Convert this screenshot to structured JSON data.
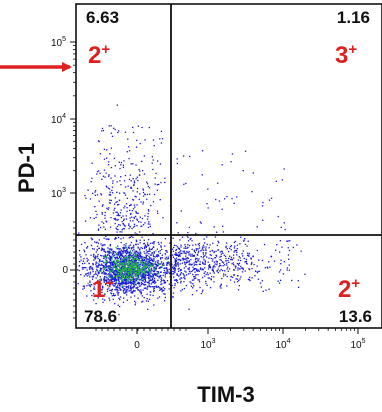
{
  "chart_data": {
    "type": "scatter",
    "xlabel": "TIM-3",
    "ylabel": "PD-1",
    "x_ticks": [
      {
        "base": "0",
        "exp": ""
      },
      {
        "base": "10",
        "exp": "3"
      },
      {
        "base": "10",
        "exp": "4"
      },
      {
        "base": "10",
        "exp": "5"
      }
    ],
    "y_ticks": [
      {
        "base": "0",
        "exp": ""
      },
      {
        "base": "10",
        "exp": "3"
      },
      {
        "base": "10",
        "exp": "4"
      },
      {
        "base": "10",
        "exp": "5"
      }
    ],
    "quadrants": {
      "top_left": {
        "percent": "6.63",
        "label": "2",
        "sup": "+"
      },
      "top_right": {
        "percent": "1.16",
        "label": "3",
        "sup": "+"
      },
      "bottom_left": {
        "percent": "78.6",
        "label": "1",
        "sup": "+"
      },
      "bottom_right": {
        "percent": "13.6",
        "label": "2",
        "sup": "+"
      }
    },
    "gate": {
      "x": 300,
      "y": 300
    },
    "point_color": "#1a1adc",
    "dense_color": "#22b04a",
    "arrow_color": "#e02020",
    "label_color": "#e02020"
  }
}
